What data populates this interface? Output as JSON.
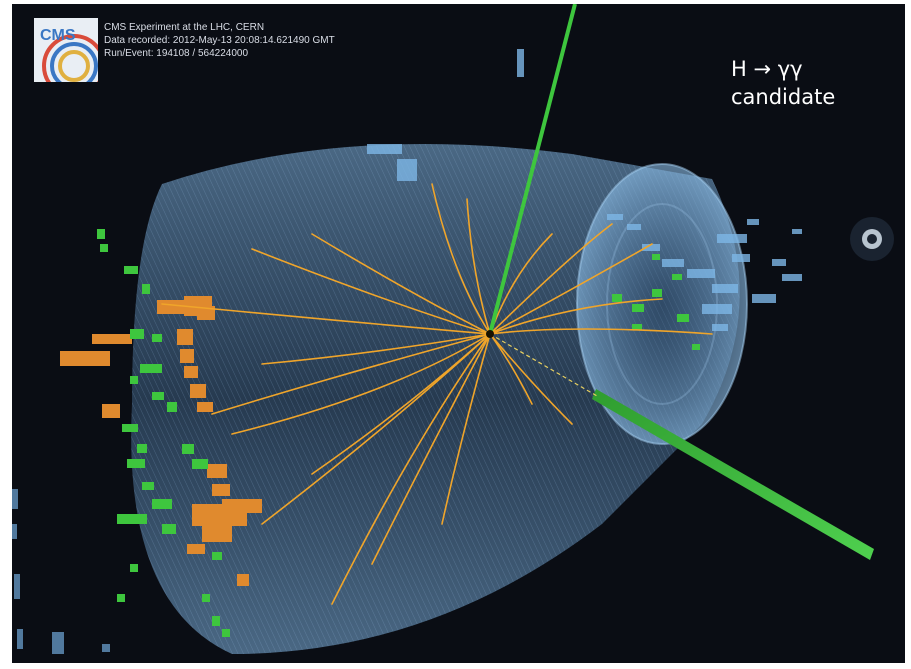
{
  "header": {
    "logo_text": "CMS",
    "line1": "CMS Experiment at the LHC, CERN",
    "line2": "Data recorded: 2012-May-13 20:08:14.621490 GMT",
    "line3": "Run/Event: 194108 / 564224000"
  },
  "caption": {
    "line1": "H → γγ",
    "line2": "candidate"
  },
  "colors": {
    "background": "#0a0d14",
    "detector": "#6fa8d8",
    "tracks": "#f0a52a",
    "photons": "#3ec63e",
    "hcal": "#e08a2e",
    "text": "#ffffff"
  }
}
